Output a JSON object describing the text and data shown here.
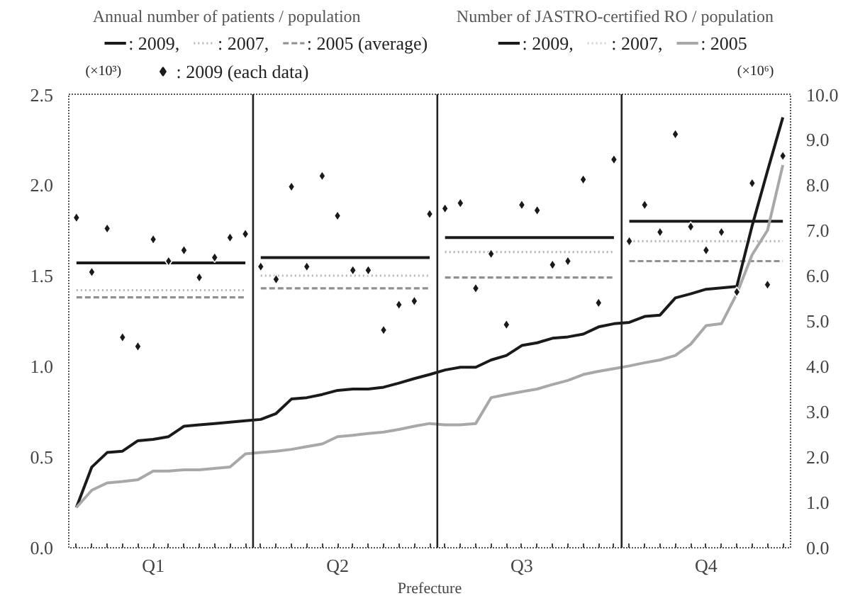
{
  "chart_data": {
    "type": "line",
    "xlabel": "Prefecture",
    "ylabel": "(×10³)",
    "y2label": "(×10⁶)",
    "annotations": [
      "Annual number of patients / population",
      "Number of JASTRO-certified RO / population"
    ],
    "categories": [
      null,
      null,
      null,
      null,
      null,
      "Q1",
      null,
      null,
      null,
      null,
      null,
      null,
      null,
      null,
      null,
      null,
      null,
      "Q2",
      null,
      null,
      null,
      null,
      null,
      null,
      null,
      null,
      null,
      null,
      null,
      "Q3",
      null,
      null,
      null,
      null,
      null,
      null,
      null,
      null,
      null,
      null,
      null,
      "Q4",
      null,
      null,
      null,
      null,
      null
    ],
    "ylim": [
      0,
      2.5
    ],
    "yticks": [
      {
        "value": 0,
        "label": "0.0"
      },
      0.5,
      {
        "value": 1,
        "label": "1.0"
      },
      1.5,
      {
        "value": 2,
        "label": "2.0"
      },
      2.5
    ],
    "y2lim": [
      0,
      10
    ],
    "y2ticks": [
      {
        "value": 0,
        "label": "0.0"
      },
      {
        "value": 1,
        "label": "1.0"
      },
      {
        "value": 2,
        "label": "2.0"
      },
      {
        "value": 3,
        "label": "3.0"
      },
      {
        "value": 4,
        "label": "4.0"
      },
      {
        "value": 5,
        "label": "5.0"
      },
      {
        "value": 6,
        "label": "6.0"
      },
      {
        "value": 7,
        "label": "7.0"
      },
      {
        "value": 8,
        "label": "8.0"
      },
      {
        "value": 9,
        "label": "9.0"
      },
      {
        "value": 10,
        "label": "10.0"
      }
    ],
    "grid": false,
    "legend": "top",
    "series": [
      {
        "name": ": 2009,",
        "color": "#1a1a1a",
        "line_style": "solid",
        "axis": "y",
        "values": [
          1.57,
          1.57,
          1.57,
          1.57,
          1.57,
          1.57,
          1.57,
          1.57,
          1.57,
          1.57,
          1.57,
          1.57,
          1.6,
          1.6,
          1.6,
          1.6,
          1.6,
          1.6,
          1.6,
          1.6,
          1.6,
          1.6,
          1.6,
          1.6,
          1.71,
          1.71,
          1.71,
          1.71,
          1.71,
          1.71,
          1.71,
          1.71,
          1.71,
          1.71,
          1.71,
          1.71,
          1.8,
          1.8,
          1.8,
          1.8,
          1.8,
          1.8,
          1.8,
          1.8,
          1.8,
          1.8,
          1.8
        ]
      },
      {
        "name": ": 2007,",
        "color": "#b5b5b5",
        "line_style": "dotted",
        "axis": "y",
        "values": [
          1.42,
          1.42,
          1.42,
          1.42,
          1.42,
          1.42,
          1.42,
          1.42,
          1.42,
          1.42,
          1.42,
          1.42,
          1.5,
          1.5,
          1.5,
          1.5,
          1.5,
          1.5,
          1.5,
          1.5,
          1.5,
          1.5,
          1.5,
          1.5,
          1.63,
          1.63,
          1.63,
          1.63,
          1.63,
          1.63,
          1.63,
          1.63,
          1.63,
          1.63,
          1.63,
          1.63,
          1.69,
          1.69,
          1.69,
          1.69,
          1.69,
          1.69,
          1.69,
          1.69,
          1.69,
          1.69,
          1.69
        ]
      },
      {
        "name": ": 2005 (average)",
        "color": "#909090",
        "line_style": "dashed",
        "axis": "y",
        "values": [
          1.38,
          1.38,
          1.38,
          1.38,
          1.38,
          1.38,
          1.38,
          1.38,
          1.38,
          1.38,
          1.38,
          1.38,
          1.43,
          1.43,
          1.43,
          1.43,
          1.43,
          1.43,
          1.43,
          1.43,
          1.43,
          1.43,
          1.43,
          1.43,
          1.49,
          1.49,
          1.49,
          1.49,
          1.49,
          1.49,
          1.49,
          1.49,
          1.49,
          1.49,
          1.49,
          1.49,
          1.58,
          1.58,
          1.58,
          1.58,
          1.58,
          1.58,
          1.58,
          1.58,
          1.58,
          1.58,
          1.58
        ]
      },
      {
        "name": ": 2009 (each data)",
        "type": "scatter",
        "marker": "diamond",
        "color": "#1a1a1a",
        "axis": "y",
        "values": [
          1.82,
          1.52,
          1.76,
          1.16,
          1.11,
          1.7,
          1.58,
          1.64,
          1.49,
          1.6,
          1.71,
          1.73,
          1.55,
          1.48,
          1.99,
          1.55,
          2.05,
          1.83,
          1.53,
          1.53,
          1.2,
          1.34,
          1.36,
          1.84,
          1.87,
          1.9,
          1.43,
          1.62,
          1.23,
          1.89,
          1.86,
          1.56,
          1.58,
          2.03,
          1.35,
          2.14,
          1.69,
          1.89,
          1.74,
          2.28,
          1.77,
          1.64,
          1.74,
          1.41,
          2.01,
          1.45,
          2.16
        ]
      },
      {
        "name": ": 2009,",
        "color": "#1a1a1a",
        "line_style": "solid",
        "axis": "y2",
        "values": [
          0.89,
          1.78,
          2.1,
          2.13,
          2.36,
          2.39,
          2.45,
          2.68,
          2.71,
          2.74,
          2.77,
          2.8,
          2.83,
          2.96,
          3.28,
          3.31,
          3.38,
          3.47,
          3.5,
          3.5,
          3.54,
          3.63,
          3.73,
          3.82,
          3.92,
          3.98,
          3.98,
          4.14,
          4.24,
          4.46,
          4.52,
          4.62,
          4.65,
          4.71,
          4.87,
          4.94,
          4.97,
          5.1,
          5.13,
          5.51,
          5.6,
          5.7,
          5.73,
          5.76,
          7.1,
          8.31,
          9.49
        ]
      },
      {
        "name": ": 2007,",
        "color": "#d0d0d0",
        "line_style": "dotted",
        "axis": "y2",
        "values": [
          null,
          null,
          null,
          null,
          null,
          null,
          null,
          null,
          null,
          null,
          null,
          null,
          null,
          null,
          null,
          null,
          null,
          null,
          null,
          null,
          null,
          null,
          null,
          null,
          null,
          null,
          null,
          null,
          null,
          null,
          null,
          null,
          null,
          null,
          null,
          null,
          null,
          null,
          null,
          null,
          null,
          null,
          null,
          null,
          null,
          null,
          null
        ]
      },
      {
        "name": ": 2005",
        "color": "#a8a8a8",
        "line_style": "solid",
        "axis": "y2",
        "values": [
          0.89,
          1.27,
          1.43,
          1.46,
          1.5,
          1.69,
          1.69,
          1.72,
          1.72,
          1.75,
          1.78,
          2.07,
          2.1,
          2.13,
          2.17,
          2.23,
          2.29,
          2.45,
          2.48,
          2.52,
          2.55,
          2.61,
          2.68,
          2.74,
          2.71,
          2.71,
          2.74,
          3.31,
          3.38,
          3.44,
          3.5,
          3.6,
          3.69,
          3.82,
          3.89,
          3.95,
          4.01,
          4.08,
          4.14,
          4.24,
          4.49,
          4.9,
          4.94,
          5.6,
          6.46,
          7.0,
          8.44
        ]
      }
    ]
  }
}
